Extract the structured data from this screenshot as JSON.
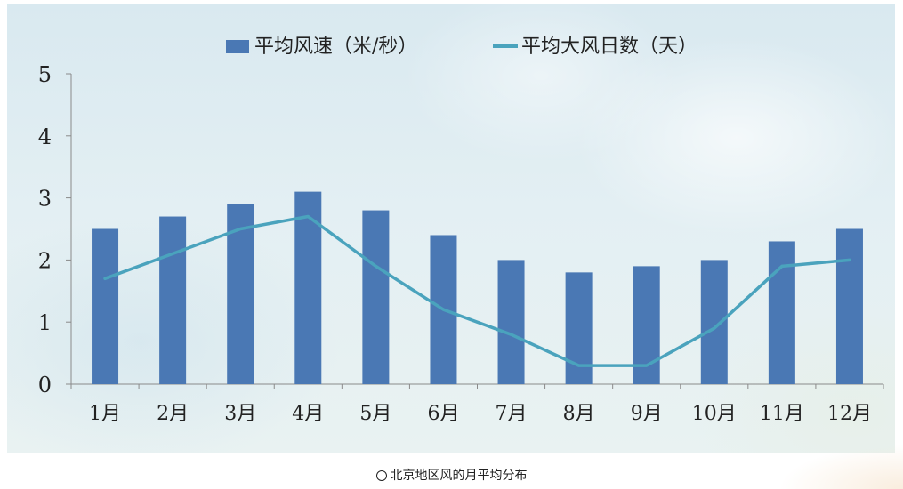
{
  "chart_data": {
    "type": "bar",
    "categories": [
      "1月",
      "2月",
      "3月",
      "4月",
      "5月",
      "6月",
      "7月",
      "8月",
      "9月",
      "10月",
      "11月",
      "12月"
    ],
    "series": [
      {
        "name": "平均风速（米/秒）",
        "type": "bar",
        "color": "#4a78b4",
        "values": [
          2.5,
          2.7,
          2.9,
          3.1,
          2.8,
          2.4,
          2.0,
          1.8,
          1.9,
          2.0,
          2.3,
          2.5
        ]
      },
      {
        "name": "平均大风日数（天）",
        "type": "line",
        "color": "#4aa3bd",
        "values": [
          1.7,
          2.1,
          2.5,
          2.7,
          1.9,
          1.2,
          0.8,
          0.3,
          0.3,
          0.9,
          1.9,
          2.0
        ]
      }
    ],
    "ylim": [
      0,
      5
    ],
    "yticks": [
      "0",
      "1",
      "2",
      "3",
      "4",
      "5"
    ],
    "legend_position": "top-center",
    "grid": false
  },
  "caption": "北京地区风的月平均分布"
}
